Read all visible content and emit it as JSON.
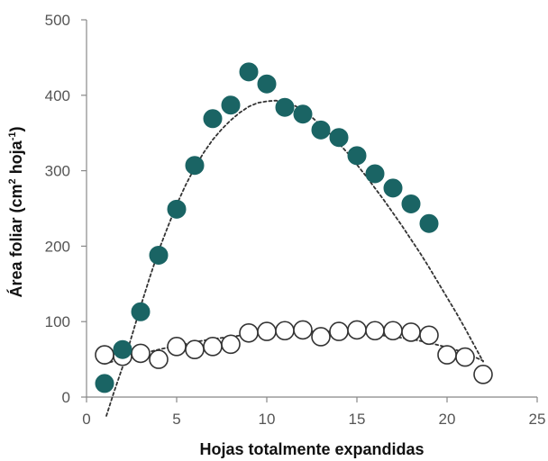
{
  "chart_data": {
    "type": "scatter",
    "xlabel": "Hojas totalmente expandidas",
    "ylabel": {
      "main": "Área foliar (cm",
      "sup1": "2",
      "mid": " hoja",
      "sup2": "-1",
      "end": ")"
    },
    "xlim": [
      0,
      25
    ],
    "ylim": [
      0,
      500
    ],
    "x_ticks": [
      0,
      5,
      10,
      15,
      20,
      25
    ],
    "y_ticks": [
      0,
      100,
      200,
      300,
      400,
      500
    ],
    "grid": false,
    "legend": "none",
    "series": [
      {
        "marker": "filled-circle",
        "color": "#1a6464",
        "x": [
          1,
          2,
          3,
          4,
          5,
          6,
          7,
          8,
          9,
          10,
          11,
          12,
          13,
          14,
          15,
          16,
          17,
          18,
          19
        ],
        "y": [
          18,
          63,
          113,
          188,
          249,
          307,
          369,
          387,
          431,
          415,
          384,
          375,
          354,
          344,
          320,
          296,
          277,
          256,
          230
        ],
        "trendline": {
          "style": "dotted",
          "x": [
            1.1,
            1.5,
            2,
            2.5,
            3,
            3.5,
            4,
            4.5,
            5,
            5.5,
            6,
            6.5,
            7,
            7.5,
            8,
            8.5,
            9,
            9.5,
            10,
            10.5,
            11,
            11.5,
            12,
            12.5,
            13,
            13.5,
            14,
            14.5,
            15,
            15.5,
            16,
            16.5,
            17,
            17.5,
            18,
            18.5,
            19,
            19.5,
            20,
            20.5,
            21,
            21.5,
            22
          ],
          "y": [
            -25,
            5,
            40,
            80,
            120,
            158,
            194,
            225,
            255,
            281,
            304,
            324,
            341,
            355,
            367,
            377,
            385,
            390,
            392,
            393,
            391,
            387,
            380,
            371,
            360,
            349,
            336,
            323,
            308,
            293,
            277,
            261,
            244,
            227,
            209,
            191,
            172,
            152,
            132,
            112,
            91,
            69,
            47
          ]
        }
      },
      {
        "marker": "open-circle",
        "color": "#333333",
        "x": [
          1,
          2,
          3,
          4,
          5,
          6,
          7,
          8,
          9,
          10,
          11,
          12,
          13,
          14,
          15,
          16,
          17,
          18,
          19,
          20,
          21,
          22
        ],
        "y": [
          56,
          54,
          58,
          50,
          67,
          63,
          67,
          70,
          85,
          87,
          88,
          89,
          80,
          87,
          89,
          88,
          88,
          86,
          82,
          56,
          53,
          30
        ],
        "trendline": {
          "style": "dotted",
          "x": [
            1,
            2,
            3,
            4,
            5,
            6,
            7,
            8,
            9,
            10,
            11,
            12,
            13,
            14,
            15,
            16,
            17,
            18,
            19,
            20,
            21,
            22
          ],
          "y": [
            44,
            51,
            57,
            63,
            68,
            73,
            77,
            80,
            83,
            85,
            86,
            87,
            87,
            87,
            85,
            83,
            80,
            77,
            72,
            66,
            59,
            48
          ]
        }
      }
    ]
  }
}
